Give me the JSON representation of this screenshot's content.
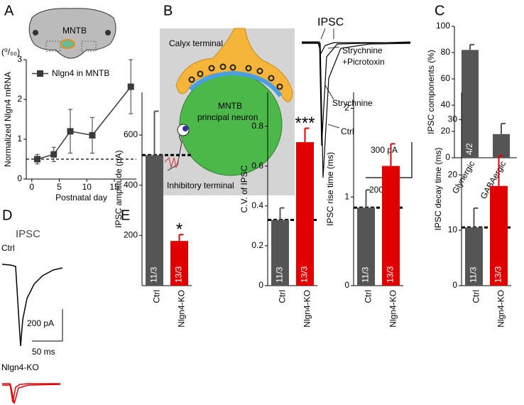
{
  "panel_letters": [
    "A",
    "B",
    "C",
    "D",
    "E"
  ],
  "panel_a_inset": {
    "label": "MNTB"
  },
  "panel_b": {
    "calyx": "Calyx terminal",
    "neuron_1": "MNTB",
    "neuron_2": "principal neuron",
    "inhibitory": "Inhibitory terminal",
    "trace_title": "IPSC",
    "label_sp_1": "Strychnine",
    "label_sp_2": "+Picrotoxin",
    "label_s": "Strychnine",
    "label_ctrl": "Ctrl",
    "scale_y": "300  pA",
    "scale_x": "200 ms"
  },
  "panel_d": {
    "trace_title": "IPSC",
    "label_ctrl": "Ctrl",
    "label_ko": "Nlgn4-KO",
    "scale_y": "200 pA",
    "scale_x": "50 ms"
  },
  "chart_data": [
    {
      "type": "line",
      "ylabel": "Normalized Nlgn4 mRNA",
      "y_unit": "(⁰/₀₀)",
      "xlabel": "Postnatal day",
      "series": [
        {
          "name": "Nlgn4 in MNTB",
          "color": "#3a3a3a",
          "x": [
            1,
            4,
            7,
            11,
            18
          ],
          "values": [
            0.5,
            0.62,
            1.2,
            1.1,
            2.32
          ],
          "errors": [
            0.12,
            0.18,
            0.55,
            0.45,
            0.68
          ]
        }
      ],
      "reference_line": 0.5,
      "xlim": [
        -1,
        19
      ],
      "xticks": [
        0,
        5,
        10,
        15
      ],
      "ylim": [
        0,
        3
      ],
      "yticks": [
        0,
        1,
        2,
        3
      ]
    },
    {
      "type": "bar",
      "ylabel": "IPSC components (%)",
      "categories": [
        "Glynergic",
        "GABAergic"
      ],
      "values": [
        82,
        18
      ],
      "errors": [
        4,
        8
      ],
      "colors": [
        "#555555",
        "#555555"
      ],
      "bar_labels": [
        "4/2",
        null
      ],
      "ylim": [
        0,
        100
      ],
      "yticks": [
        0,
        20,
        40,
        60,
        80,
        100
      ]
    },
    {
      "type": "bar",
      "ylabel": "IPSC amplitude (pA)",
      "categories": [
        "Ctrl",
        "Nlgn4-KO"
      ],
      "values": [
        520,
        178
      ],
      "errors": [
        175,
        25
      ],
      "colors": [
        "#555555",
        "#e00000"
      ],
      "bar_labels": [
        "11/3",
        "13/3"
      ],
      "annotation": "*",
      "reference_line": 520,
      "ylim": [
        0,
        770
      ],
      "yticks": [
        200,
        400,
        600
      ]
    },
    {
      "type": "bar",
      "ylabel": "C.V. of IPSC",
      "categories": [
        "Ctrl",
        "Nlgn4-KO"
      ],
      "values": [
        0.33,
        0.72
      ],
      "errors": [
        0.06,
        0.07
      ],
      "colors": [
        "#555555",
        "#e00000"
      ],
      "bar_labels": [
        "11/3",
        "13/3"
      ],
      "annotation": "***",
      "reference_line": 0.33,
      "ylim": [
        0,
        0.97
      ],
      "yticks": [
        0,
        0.2,
        0.4,
        0.6,
        0.8
      ]
    },
    {
      "type": "bar",
      "ylabel": "IPSC rise time (ms)",
      "categories": [
        "Ctrl",
        "Nlgn4-KO"
      ],
      "values": [
        0.88,
        1.35
      ],
      "errors": [
        0.2,
        0.25
      ],
      "colors": [
        "#555555",
        "#e00000"
      ],
      "bar_labels": [
        "11/3",
        "13/3"
      ],
      "reference_line": 0.88,
      "ylim": [
        0,
        2.18
      ],
      "yticks": [
        0,
        1,
        2
      ]
    },
    {
      "type": "bar",
      "ylabel": "IPSC decay time (ms)",
      "categories": [
        "Ctrl",
        "Nlgn4-KO"
      ],
      "values": [
        10.5,
        18
      ],
      "errors": [
        3.5,
        5.5
      ],
      "colors": [
        "#555555",
        "#e00000"
      ],
      "bar_labels": [
        "11/3",
        "13/3"
      ],
      "reference_line": 10.5,
      "ylim": [
        0,
        34.9
      ],
      "yticks": [
        0,
        10,
        20,
        30
      ]
    }
  ]
}
